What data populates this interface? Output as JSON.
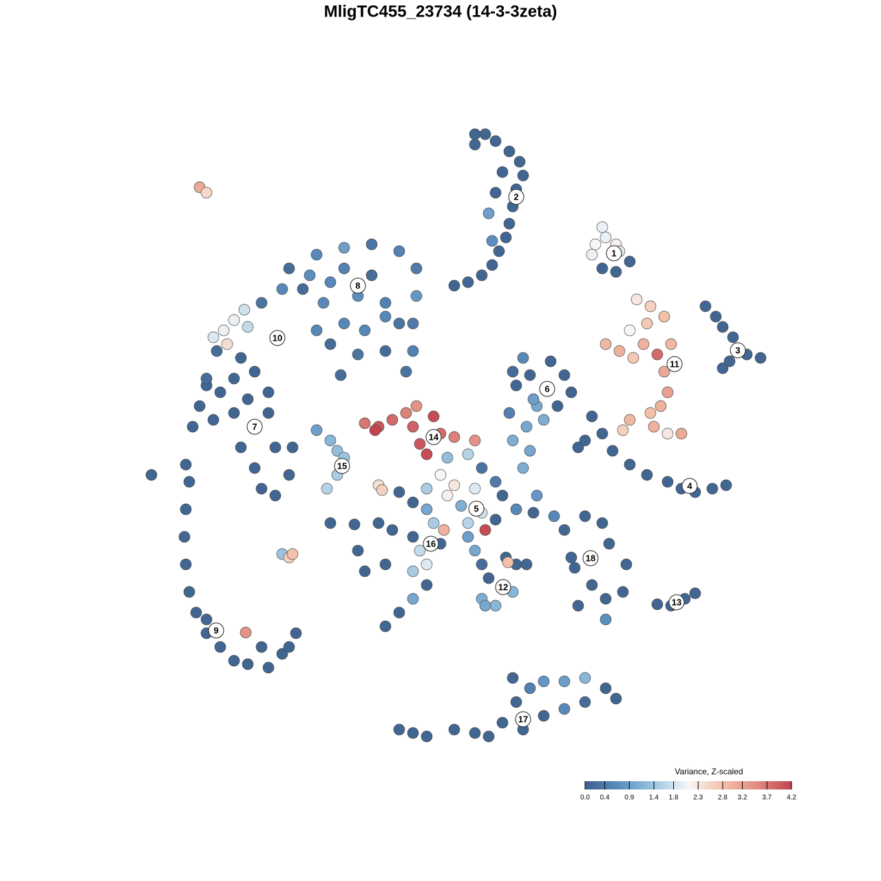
{
  "chart_data": {
    "type": "scatter",
    "title": "MligTC455_23734 (14-3-3zeta)",
    "xlim": [
      -45,
      50
    ],
    "ylim": [
      -46,
      48
    ],
    "colorbar": {
      "title": "Variance, Z-scaled",
      "lim": [
        0,
        4.2
      ],
      "ticks": [
        {
          "value": 0,
          "label": "0.0"
        },
        0.4,
        0.9,
        1.4,
        1.8,
        2.3,
        2.8,
        3.2,
        3.7,
        4.2
      ],
      "colors": [
        "#3e5f8a",
        "#5b8fc0",
        "#9cc5e0",
        "#f7f7f7",
        "#f3c0a8",
        "#e08b80",
        "#c0434f"
      ]
    },
    "groups": [
      {
        "label": "1",
        "label_x": 25.2,
        "label_y": 27.2,
        "x": [
          23.5,
          22.5,
          24,
          25.5,
          22,
          23.5,
          25.5,
          27.5,
          26
        ],
        "y": [
          31,
          28.5,
          29.5,
          28.5,
          27,
          25,
          24.5,
          26,
          27.5
        ],
        "values": [
          2.0,
          2.1,
          2.0,
          2.2,
          2.0,
          0.1,
          0.1,
          0.1,
          1.9
        ]
      },
      {
        "label": "2",
        "label_x": 11,
        "label_y": 35.4,
        "x": [
          5,
          6.5,
          8,
          10,
          11.5,
          12,
          11,
          10.5,
          10,
          9.5,
          8.5,
          7.5,
          6,
          4,
          2,
          5,
          9,
          8,
          7,
          7.5
        ],
        "y": [
          44.5,
          44.5,
          43.5,
          42,
          40.5,
          38.5,
          36.5,
          34,
          31.5,
          29.5,
          27.5,
          25.5,
          24,
          23,
          22.5,
          43,
          39,
          36,
          33,
          29
        ],
        "values": [
          0.1,
          0.1,
          0.1,
          0.1,
          0.1,
          0.1,
          0.1,
          0.1,
          0.1,
          0.1,
          0.1,
          0.1,
          0.1,
          0.1,
          0.1,
          0.1,
          0.1,
          0.1,
          0.9,
          0.7
        ]
      },
      {
        "label": "3",
        "label_x": 43.2,
        "label_y": 13.1,
        "x": [
          38.5,
          40,
          41,
          42.5,
          44.5,
          46.5,
          41,
          42
        ],
        "y": [
          19.5,
          18,
          16.5,
          15,
          12.5,
          12,
          10.5,
          11.5
        ],
        "values": [
          0.1,
          0.1,
          0.1,
          0.1,
          0.1,
          0.1,
          0.1,
          0.1
        ]
      },
      {
        "label": "4",
        "label_x": 36.2,
        "label_y": -6.6,
        "x": [
          22,
          23.5,
          25,
          27.5,
          30,
          33,
          35,
          37,
          39.5,
          41.5,
          20,
          21
        ],
        "y": [
          3.5,
          1,
          -1.5,
          -3.5,
          -5,
          -6,
          -7,
          -7.5,
          -7,
          -6.5,
          -1,
          0
        ],
        "values": [
          0.1,
          0.1,
          0.1,
          0.1,
          0.1,
          0.1,
          0.1,
          0.1,
          0.1,
          0.1,
          0.1,
          0.1
        ]
      },
      {
        "label": "5",
        "label_x": 5.2,
        "label_y": -9.9,
        "x": [
          1,
          4,
          6,
          8,
          5,
          2,
          0,
          -2,
          -4,
          -2,
          1,
          3,
          6,
          8,
          6.5,
          4,
          0.5,
          -6,
          9,
          11,
          14,
          13.5
        ],
        "y": [
          -2.5,
          -2,
          -4,
          -6,
          -7,
          -6.5,
          -5,
          -7,
          -9,
          -10,
          -8,
          -9.5,
          -10.5,
          -11.5,
          -13,
          -12,
          -13,
          -7.5,
          -8,
          -10,
          -8,
          -10.5
        ],
        "values": [
          1.3,
          1.6,
          0.3,
          0.4,
          1.9,
          2.3,
          2.1,
          1.5,
          0.1,
          1.0,
          2.2,
          1.1,
          1.8,
          0.1,
          4.1,
          1.6,
          3.0,
          0.1,
          0.1,
          0.6,
          0.8,
          0.1
        ]
      },
      {
        "label": "6",
        "label_x": 15.5,
        "label_y": 7.5,
        "x": [
          12,
          10.5,
          13,
          16,
          18,
          19,
          17,
          14,
          15,
          12.5,
          10.5,
          13,
          12,
          10,
          11,
          13.5
        ],
        "y": [
          12,
          10,
          9.5,
          11.5,
          9.5,
          7,
          5,
          5,
          3,
          2,
          0,
          -1.5,
          -4,
          4,
          8,
          6
        ],
        "values": [
          0.6,
          0.2,
          0.1,
          0.1,
          0.1,
          0.1,
          0.1,
          1.0,
          1.1,
          1.0,
          1.1,
          1.0,
          1.1,
          0.5,
          0.1,
          0.9
        ]
      },
      {
        "label": "7",
        "label_x": -27,
        "label_y": 2,
        "x": [
          -35,
          -36,
          -33,
          -30,
          -28,
          -25,
          -27,
          -29,
          -30,
          -32,
          -29,
          -27,
          -26,
          -24,
          -22,
          -21.5,
          -24,
          -25,
          -34
        ],
        "y": [
          5,
          2,
          3,
          4,
          6,
          7,
          10,
          12,
          9,
          7,
          -1,
          -4,
          -7,
          -8,
          -5,
          -1,
          -1,
          4,
          8
        ],
        "values": [
          0.1,
          0.1,
          0.1,
          0.1,
          0.1,
          0.1,
          0.1,
          0.1,
          0.1,
          0.1,
          0.1,
          0.1,
          0.1,
          0.1,
          0.1,
          0.1,
          0.1,
          0.1,
          0.1
        ]
      },
      {
        "label": "8",
        "label_x": -12,
        "label_y": 22.5,
        "x": [
          -18,
          -14,
          -10,
          -6,
          -3.5,
          -3.5,
          -4,
          -4,
          -5,
          -8,
          -11,
          -14,
          -17,
          -20,
          -23,
          -26,
          -22,
          -19,
          -16,
          -12,
          -8,
          -10,
          -14,
          -6,
          -16,
          -12,
          -8,
          -18,
          -14.5
        ],
        "y": [
          27,
          28,
          28.5,
          27.5,
          25,
          21,
          17,
          13,
          10,
          13,
          16,
          17,
          20,
          22,
          22,
          20,
          25,
          24,
          23,
          21,
          20,
          24,
          25,
          17,
          14,
          12.5,
          18,
          16,
          9.5
        ],
        "values": [
          0.6,
          0.9,
          0.3,
          0.5,
          0.4,
          0.8,
          0.4,
          0.5,
          0.3,
          0.2,
          0.6,
          0.6,
          0.6,
          0.2,
          0.6,
          0.3,
          0.2,
          0.7,
          0.6,
          0.7,
          0.5,
          0.2,
          0.5,
          0.3,
          0.2,
          0.3,
          0.6,
          0.6,
          0.2
        ]
      },
      {
        "label": "9",
        "label_x": -32.6,
        "label_y": -27.6,
        "x": [
          -42,
          -37,
          -36.5,
          -37,
          -37.2,
          -37,
          -36.5,
          -35.5,
          -34,
          -32,
          -30,
          -28,
          -25,
          -23,
          -21,
          -22,
          -26,
          -34,
          -28.3
        ],
        "y": [
          -5,
          -3.5,
          -6,
          -10,
          -14,
          -18,
          -22,
          -25,
          -28,
          -30,
          -32,
          -32.5,
          -33,
          -31,
          -28,
          -30,
          -30,
          -26,
          -27.9
        ],
        "values": [
          0.1,
          0.1,
          0.1,
          0.1,
          0.1,
          0.1,
          0.1,
          0.1,
          0.1,
          0.1,
          0.1,
          0.1,
          0.1,
          0.1,
          0.1,
          0.1,
          0.1,
          0.1,
          3.4
        ]
      },
      {
        "label": "10",
        "label_x": -23.7,
        "label_y": 14.9,
        "x": [
          -28.5,
          -30,
          -31.5,
          -33,
          -32.5,
          -34,
          -31,
          -28
        ],
        "y": [
          19,
          17.5,
          16,
          15,
          13,
          9,
          14,
          16.5
        ],
        "values": [
          1.8,
          2.0,
          2.0,
          1.9,
          0.2,
          0.2,
          2.4,
          1.7
        ]
      },
      {
        "label": "11",
        "label_x": 34,
        "label_y": 11.1,
        "x": [
          28.5,
          30.5,
          32.5,
          30,
          27.5,
          24,
          26,
          29.5,
          31.5,
          33.5,
          32.5,
          33,
          32,
          30.5,
          27.5,
          26.5,
          31,
          35,
          33,
          28
        ],
        "y": [
          20.5,
          19.5,
          18,
          17,
          16,
          14,
          13,
          14,
          12.5,
          14,
          10,
          7,
          5,
          4,
          3,
          1.5,
          2,
          1,
          1,
          12
        ],
        "values": [
          2.3,
          2.6,
          2.8,
          2.7,
          2.1,
          2.9,
          3.0,
          3.0,
          3.8,
          2.9,
          3.1,
          3.2,
          3.0,
          2.8,
          2.9,
          2.6,
          3.0,
          3.1,
          2.3,
          2.7
        ]
      },
      {
        "label": "12",
        "label_x": 9.1,
        "label_y": -21.3,
        "x": [
          5,
          6,
          7,
          6,
          8,
          10.5,
          11,
          9.5,
          12.5,
          4,
          6.5,
          9.8
        ],
        "y": [
          -16,
          -18,
          -20,
          -23,
          -24,
          -22,
          -18,
          -17,
          -18,
          -14,
          -24,
          -17.7
        ],
        "values": [
          1.0,
          0.2,
          0.1,
          1.1,
          1.2,
          1.2,
          0.1,
          0.1,
          0.1,
          0.9,
          1.0,
          2.8
        ]
      },
      {
        "label": "13",
        "label_x": 34.3,
        "label_y": -23.5,
        "x": [
          31.5,
          33.5,
          35.5,
          37
        ],
        "y": [
          -23.8,
          -24,
          -23,
          -22.2
        ],
        "values": [
          0.1,
          0.1,
          0.1,
          0.1
        ]
      },
      {
        "label": "14",
        "label_x": -1,
        "label_y": 0.5,
        "x": [
          -11,
          -9,
          -7,
          -5,
          -3.5,
          -1,
          -4,
          -3,
          -2,
          0,
          2,
          5,
          -9.5
        ],
        "y": [
          2.5,
          2,
          3,
          4,
          5,
          3.5,
          2,
          -0.5,
          -2,
          1,
          0.5,
          0,
          1.5
        ],
        "values": [
          3.7,
          4.0,
          3.8,
          3.6,
          3.4,
          4.1,
          3.9,
          4.0,
          4.1,
          3.8,
          3.6,
          3.4,
          4.2
        ]
      },
      {
        "label": "15",
        "label_x": -14.3,
        "label_y": -3.7,
        "x": [
          -18,
          -16,
          -15,
          -14,
          -15,
          -16.5,
          -9,
          -8.5
        ],
        "y": [
          1.5,
          0,
          -1.5,
          -2.5,
          -5,
          -7,
          -6.5,
          -7.2
        ],
        "values": [
          0.9,
          1.2,
          1.3,
          1.4,
          1.5,
          1.6,
          2.4,
          2.6
        ]
      },
      {
        "label": "16",
        "label_x": -1.4,
        "label_y": -15,
        "x": [
          -9,
          -7,
          -4,
          -3,
          -2,
          -4,
          -2,
          -4,
          -6,
          -8,
          -12,
          -11,
          -8,
          0,
          -1
        ],
        "y": [
          -12,
          -13,
          -14,
          -16,
          -18,
          -19,
          -21,
          -23,
          -25,
          -27,
          -16,
          -19,
          -18,
          -15,
          -12
        ],
        "values": [
          0.1,
          0.1,
          0.1,
          1.7,
          1.9,
          1.5,
          0.1,
          1.0,
          0.1,
          0.1,
          0.1,
          0.1,
          0.1,
          0.1,
          1.5
        ]
      },
      {
        "label": "17",
        "label_x": 12,
        "label_y": -40.5,
        "x": [
          -6,
          -4,
          -2,
          2,
          5,
          7,
          9,
          11,
          13,
          15,
          18,
          21,
          24,
          25.5,
          21,
          18,
          15,
          12,
          10.5
        ],
        "y": [
          -42,
          -42.5,
          -43,
          -42,
          -42.5,
          -43,
          -41,
          -38,
          -36,
          -35,
          -35,
          -34.5,
          -36,
          -37.5,
          -38,
          -39,
          -40,
          -42,
          -34.5
        ],
        "values": [
          0.1,
          0.1,
          0.1,
          0.1,
          0.1,
          0.1,
          0.1,
          0.1,
          0.5,
          0.8,
          0.9,
          1.2,
          0.1,
          0.1,
          0.2,
          0.6,
          0.1,
          0.1,
          0.1
        ]
      },
      {
        "label": "18",
        "label_x": 21.8,
        "label_y": -17.1,
        "x": [
          16.5,
          21,
          23.5,
          24.5,
          27,
          26.5,
          24,
          22,
          20,
          19,
          18,
          24,
          19.5
        ],
        "y": [
          -11,
          -11,
          -12,
          -15,
          -18,
          -22,
          -23,
          -21,
          -24,
          -17,
          -13,
          -26,
          -18.5
        ],
        "values": [
          0.6,
          0.1,
          0.1,
          0.1,
          0.1,
          0.1,
          0.1,
          0.1,
          0.1,
          0.1,
          0.1,
          0.7,
          0.1
        ]
      },
      {
        "x": [
          -35,
          -34
        ],
        "y": [
          36.8,
          36
        ],
        "values": [
          3.1,
          2.5
        ]
      },
      {
        "x": [
          -23,
          -22,
          -21.5
        ],
        "y": [
          -16.5,
          -17,
          -16.5
        ],
        "values": [
          1.4,
          2.6,
          2.8
        ]
      },
      {
        "x": [
          -16,
          -12.5
        ],
        "y": [
          -12,
          -12.2
        ],
        "values": [
          0.1,
          0.1
        ]
      }
    ]
  }
}
